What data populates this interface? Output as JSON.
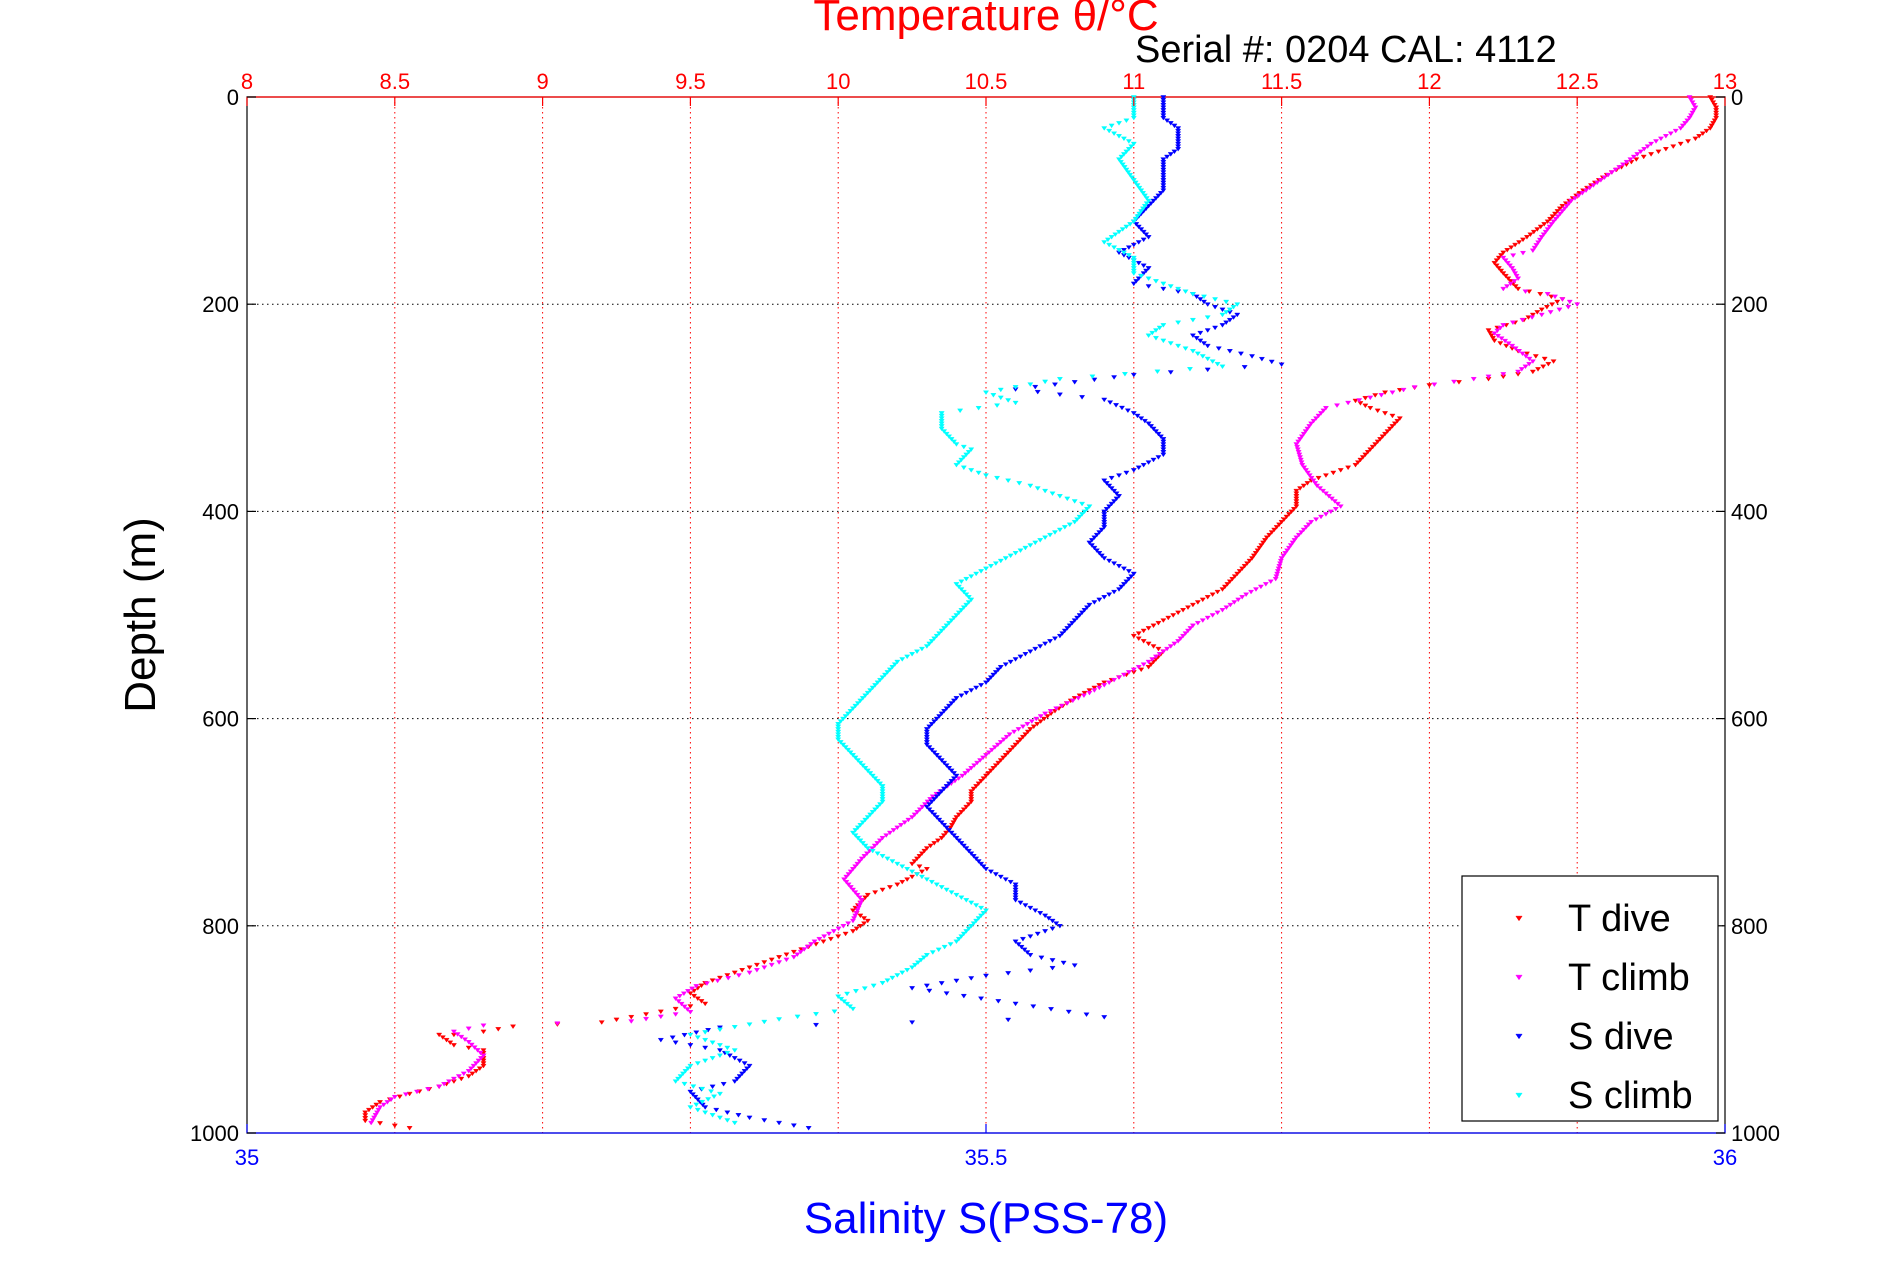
{
  "chart_data": {
    "type": "scatter",
    "title": "Temperature θ/°C",
    "subtitle": "Serial #: 0204  CAL: 4112",
    "xlabel_top": "Temperature θ/°C",
    "xlabel_bottom": "Salinity S(PSS-78)",
    "ylabel": "Depth (m)",
    "x_top_range": [
      8,
      13
    ],
    "x_top_ticks": [
      "8",
      "8.5",
      "9",
      "9.5",
      "10",
      "10.5",
      "11",
      "11.5",
      "12",
      "12.5",
      "13"
    ],
    "x_bottom_range": [
      35,
      36
    ],
    "x_bottom_ticks": [
      "35",
      "35.5",
      "36"
    ],
    "y_range": [
      0,
      1000
    ],
    "y_reversed": true,
    "y_ticks_left": [
      "0",
      "200",
      "400",
      "600",
      "800",
      "1000"
    ],
    "y_ticks_right": [
      "0",
      "200",
      "400",
      "600",
      "800",
      "1000"
    ],
    "grid": true,
    "legend_placement": "bottom-right",
    "series": [
      {
        "name": "T dive",
        "axis": "temperature",
        "color": "#ff0000",
        "points": [
          [
            12.95,
            0
          ],
          [
            12.97,
            10
          ],
          [
            12.97,
            20
          ],
          [
            12.95,
            30
          ],
          [
            12.9,
            40
          ],
          [
            12.8,
            50
          ],
          [
            12.7,
            60
          ],
          [
            12.6,
            75
          ],
          [
            12.52,
            90
          ],
          [
            12.45,
            105
          ],
          [
            12.4,
            120
          ],
          [
            12.33,
            135
          ],
          [
            12.25,
            150
          ],
          [
            12.22,
            160
          ],
          [
            12.25,
            170
          ],
          [
            12.3,
            185
          ],
          [
            12.45,
            195
          ],
          [
            12.38,
            205
          ],
          [
            12.32,
            215
          ],
          [
            12.2,
            225
          ],
          [
            12.22,
            235
          ],
          [
            12.3,
            245
          ],
          [
            12.42,
            255
          ],
          [
            12.35,
            265
          ],
          [
            12.2,
            272
          ],
          [
            12,
            278
          ],
          [
            11.85,
            285
          ],
          [
            11.75,
            293
          ],
          [
            11.8,
            300
          ],
          [
            11.9,
            310
          ],
          [
            11.85,
            325
          ],
          [
            11.8,
            340
          ],
          [
            11.75,
            355
          ],
          [
            11.6,
            370
          ],
          [
            11.55,
            380
          ],
          [
            11.55,
            395
          ],
          [
            11.5,
            410
          ],
          [
            11.45,
            425
          ],
          [
            11.4,
            445
          ],
          [
            11.35,
            460
          ],
          [
            11.3,
            475
          ],
          [
            11.2,
            490
          ],
          [
            11.1,
            505
          ],
          [
            11,
            520
          ],
          [
            11.1,
            535
          ],
          [
            11.05,
            550
          ],
          [
            10.9,
            565
          ],
          [
            10.8,
            580
          ],
          [
            10.72,
            595
          ],
          [
            10.65,
            610
          ],
          [
            10.6,
            625
          ],
          [
            10.55,
            640
          ],
          [
            10.5,
            655
          ],
          [
            10.45,
            670
          ],
          [
            10.45,
            680
          ],
          [
            10.4,
            695
          ],
          [
            10.38,
            705
          ],
          [
            10.35,
            715
          ],
          [
            10.3,
            725
          ],
          [
            10.25,
            740
          ],
          [
            10.3,
            745
          ],
          [
            10.2,
            760
          ],
          [
            10.1,
            770
          ],
          [
            10.05,
            785
          ],
          [
            10.1,
            795
          ],
          [
            10.05,
            805
          ],
          [
            9.95,
            815
          ],
          [
            9.85,
            825
          ],
          [
            9.75,
            835
          ],
          [
            9.65,
            845
          ],
          [
            9.55,
            855
          ],
          [
            9.5,
            865
          ],
          [
            9.55,
            875
          ],
          [
            9.45,
            880
          ],
          [
            9.2,
            893
          ],
          [
            8.9,
            897
          ],
          [
            8.8,
            902
          ],
          [
            8.7,
            905
          ],
          [
            8.65,
            905
          ],
          [
            8.7,
            915
          ],
          [
            8.8,
            920
          ],
          [
            8.8,
            935
          ],
          [
            8.75,
            945
          ],
          [
            8.65,
            955
          ],
          [
            8.55,
            962
          ],
          [
            8.45,
            970
          ],
          [
            8.4,
            980
          ],
          [
            8.4,
            988
          ],
          [
            8.55,
            995
          ]
        ]
      },
      {
        "name": "T climb",
        "axis": "temperature",
        "color": "#ff00ff",
        "points": [
          [
            12.88,
            0
          ],
          [
            12.9,
            10
          ],
          [
            12.88,
            20
          ],
          [
            12.85,
            30
          ],
          [
            12.75,
            45
          ],
          [
            12.68,
            60
          ],
          [
            12.58,
            80
          ],
          [
            12.48,
            100
          ],
          [
            12.42,
            120
          ],
          [
            12.38,
            135
          ],
          [
            12.35,
            148
          ],
          [
            12.25,
            155
          ],
          [
            12.28,
            165
          ],
          [
            12.3,
            175
          ],
          [
            12.25,
            185
          ],
          [
            12.4,
            190
          ],
          [
            12.5,
            200
          ],
          [
            12.38,
            210
          ],
          [
            12.25,
            220
          ],
          [
            12.22,
            228
          ],
          [
            12.28,
            240
          ],
          [
            12.35,
            255
          ],
          [
            12.3,
            265
          ],
          [
            12.15,
            272
          ],
          [
            11.95,
            280
          ],
          [
            11.8,
            290
          ],
          [
            11.65,
            300
          ],
          [
            11.6,
            315
          ],
          [
            11.55,
            335
          ],
          [
            11.57,
            355
          ],
          [
            11.62,
            375
          ],
          [
            11.7,
            395
          ],
          [
            11.6,
            410
          ],
          [
            11.55,
            425
          ],
          [
            11.5,
            445
          ],
          [
            11.48,
            465
          ],
          [
            11.38,
            480
          ],
          [
            11.3,
            495
          ],
          [
            11.2,
            510
          ],
          [
            11.15,
            525
          ],
          [
            11.05,
            545
          ],
          [
            10.95,
            560
          ],
          [
            10.85,
            575
          ],
          [
            10.7,
            595
          ],
          [
            10.58,
            615
          ],
          [
            10.5,
            635
          ],
          [
            10.42,
            655
          ],
          [
            10.32,
            675
          ],
          [
            10.25,
            695
          ],
          [
            10.15,
            715
          ],
          [
            10.08,
            735
          ],
          [
            10.02,
            755
          ],
          [
            10.08,
            775
          ],
          [
            10.05,
            795
          ],
          [
            9.92,
            815
          ],
          [
            9.85,
            830
          ],
          [
            9.7,
            845
          ],
          [
            9.52,
            858
          ],
          [
            9.45,
            870
          ],
          [
            9.5,
            883
          ],
          [
            9.3,
            892
          ],
          [
            8.8,
            896
          ],
          [
            8.7,
            902
          ],
          [
            8.75,
            912
          ],
          [
            8.8,
            925
          ],
          [
            8.75,
            940
          ],
          [
            8.65,
            955
          ],
          [
            8.5,
            965
          ],
          [
            8.45,
            975
          ],
          [
            8.42,
            990
          ]
        ]
      },
      {
        "name": "S dive",
        "axis": "salinity",
        "color": "#0000ff",
        "points": [
          [
            35.62,
            0
          ],
          [
            35.62,
            10
          ],
          [
            35.62,
            20
          ],
          [
            35.63,
            30
          ],
          [
            35.63,
            40
          ],
          [
            35.63,
            50
          ],
          [
            35.62,
            60
          ],
          [
            35.62,
            75
          ],
          [
            35.62,
            90
          ],
          [
            35.61,
            105
          ],
          [
            35.6,
            120
          ],
          [
            35.61,
            135
          ],
          [
            35.59,
            150
          ],
          [
            35.61,
            165
          ],
          [
            35.6,
            180
          ],
          [
            35.64,
            190
          ],
          [
            35.65,
            200
          ],
          [
            35.67,
            210
          ],
          [
            35.66,
            220
          ],
          [
            35.64,
            230
          ],
          [
            35.65,
            240
          ],
          [
            35.68,
            250
          ],
          [
            35.7,
            258
          ],
          [
            35.6,
            268
          ],
          [
            35.52,
            282
          ],
          [
            35.58,
            292
          ],
          [
            35.6,
            305
          ],
          [
            35.61,
            315
          ],
          [
            35.62,
            330
          ],
          [
            35.62,
            345
          ],
          [
            35.6,
            360
          ],
          [
            35.58,
            370
          ],
          [
            35.59,
            385
          ],
          [
            35.58,
            400
          ],
          [
            35.58,
            415
          ],
          [
            35.57,
            430
          ],
          [
            35.58,
            445
          ],
          [
            35.6,
            460
          ],
          [
            35.59,
            475
          ],
          [
            35.57,
            490
          ],
          [
            35.56,
            505
          ],
          [
            35.55,
            520
          ],
          [
            35.53,
            535
          ],
          [
            35.51,
            550
          ],
          [
            35.5,
            565
          ],
          [
            35.48,
            580
          ],
          [
            35.47,
            595
          ],
          [
            35.46,
            610
          ],
          [
            35.46,
            625
          ],
          [
            35.47,
            640
          ],
          [
            35.48,
            655
          ],
          [
            35.47,
            670
          ],
          [
            35.46,
            685
          ],
          [
            35.47,
            700
          ],
          [
            35.48,
            715
          ],
          [
            35.49,
            730
          ],
          [
            35.5,
            745
          ],
          [
            35.52,
            760
          ],
          [
            35.52,
            775
          ],
          [
            35.54,
            790
          ],
          [
            35.55,
            800
          ],
          [
            35.52,
            815
          ],
          [
            35.53,
            828
          ],
          [
            35.56,
            838
          ],
          [
            35.5,
            848
          ],
          [
            35.45,
            860
          ],
          [
            35.52,
            875
          ],
          [
            35.58,
            888
          ],
          [
            35.32,
            898
          ],
          [
            35.28,
            910
          ],
          [
            35.32,
            920
          ],
          [
            35.34,
            935
          ],
          [
            35.33,
            950
          ],
          [
            35.3,
            960
          ],
          [
            35.31,
            975
          ],
          [
            35.34,
            985
          ],
          [
            35.38,
            995
          ]
        ]
      },
      {
        "name": "S climb",
        "axis": "salinity",
        "color": "#00ffff",
        "points": [
          [
            35.6,
            0
          ],
          [
            35.6,
            10
          ],
          [
            35.6,
            20
          ],
          [
            35.58,
            30
          ],
          [
            35.6,
            45
          ],
          [
            35.59,
            60
          ],
          [
            35.6,
            80
          ],
          [
            35.61,
            100
          ],
          [
            35.6,
            120
          ],
          [
            35.58,
            140
          ],
          [
            35.6,
            155
          ],
          [
            35.6,
            170
          ],
          [
            35.62,
            180
          ],
          [
            35.64,
            190
          ],
          [
            35.67,
            200
          ],
          [
            35.66,
            210
          ],
          [
            35.62,
            220
          ],
          [
            35.61,
            230
          ],
          [
            35.64,
            245
          ],
          [
            35.66,
            260
          ],
          [
            35.55,
            272
          ],
          [
            35.5,
            285
          ],
          [
            35.52,
            295
          ],
          [
            35.47,
            305
          ],
          [
            35.47,
            320
          ],
          [
            35.48,
            335
          ],
          [
            35.49,
            340
          ],
          [
            35.48,
            355
          ],
          [
            35.5,
            365
          ],
          [
            35.53,
            375
          ],
          [
            35.55,
            385
          ],
          [
            35.57,
            395
          ],
          [
            35.56,
            410
          ],
          [
            35.54,
            425
          ],
          [
            35.52,
            440
          ],
          [
            35.5,
            455
          ],
          [
            35.48,
            470
          ],
          [
            35.49,
            485
          ],
          [
            35.48,
            500
          ],
          [
            35.47,
            515
          ],
          [
            35.46,
            530
          ],
          [
            35.44,
            545
          ],
          [
            35.43,
            560
          ],
          [
            35.42,
            575
          ],
          [
            35.41,
            590
          ],
          [
            35.4,
            605
          ],
          [
            35.4,
            620
          ],
          [
            35.41,
            635
          ],
          [
            35.42,
            650
          ],
          [
            35.43,
            665
          ],
          [
            35.43,
            680
          ],
          [
            35.42,
            695
          ],
          [
            35.41,
            710
          ],
          [
            35.42,
            725
          ],
          [
            35.44,
            740
          ],
          [
            35.46,
            755
          ],
          [
            35.48,
            770
          ],
          [
            35.5,
            785
          ],
          [
            35.49,
            800
          ],
          [
            35.48,
            815
          ],
          [
            35.46,
            828
          ],
          [
            35.45,
            840
          ],
          [
            35.43,
            855
          ],
          [
            35.4,
            868
          ],
          [
            35.41,
            880
          ],
          [
            35.36,
            890
          ],
          [
            35.3,
            905
          ],
          [
            35.33,
            920
          ],
          [
            35.3,
            935
          ],
          [
            35.29,
            950
          ],
          [
            35.32,
            962
          ],
          [
            35.3,
            975
          ],
          [
            35.33,
            990
          ]
        ]
      }
    ]
  }
}
